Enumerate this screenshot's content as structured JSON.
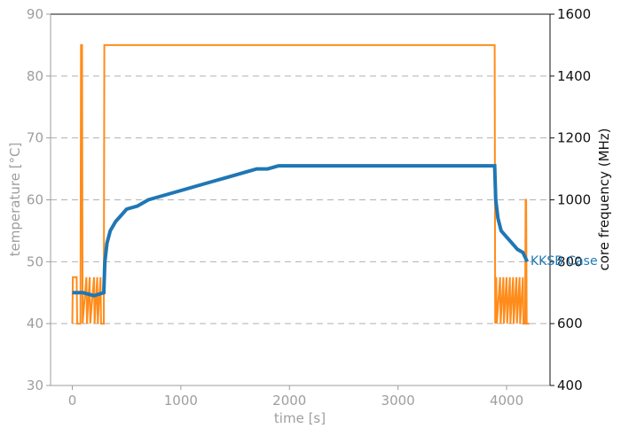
{
  "chart_data": {
    "type": "line",
    "xlabel": "time [s]",
    "ylabel_left": "temperature [°C]",
    "ylabel_right": "core frequency (MHz)",
    "xlim": [
      -200,
      4400
    ],
    "ylim_left": [
      30,
      90
    ],
    "ylim_right": [
      400,
      1600
    ],
    "x_ticks": [
      0,
      1000,
      2000,
      3000,
      4000
    ],
    "y_ticks_left": [
      30,
      40,
      50,
      60,
      70,
      80,
      90
    ],
    "y_ticks_right": [
      400,
      600,
      800,
      1000,
      1200,
      1400,
      1600
    ],
    "grid": "horizontal dashed",
    "colors": {
      "temperature": "#1f77b4",
      "frequency": "#ff8c1a",
      "grid": "#b0b0b0",
      "left_axis": "#9e9e9e",
      "right_axis": "#111111"
    },
    "series": [
      {
        "name": "KKSB Case",
        "axis": "left",
        "x": [
          0,
          100,
          200,
          290,
          300,
          320,
          350,
          400,
          450,
          500,
          600,
          700,
          800,
          900,
          1000,
          1100,
          1200,
          1300,
          1400,
          1500,
          1600,
          1700,
          1800,
          1900,
          2000,
          2200,
          2400,
          2600,
          2800,
          3000,
          3200,
          3400,
          3600,
          3800,
          3890,
          3900,
          3920,
          3950,
          4000,
          4050,
          4100,
          4150,
          4190
        ],
        "y": [
          45,
          45,
          44.5,
          45,
          50,
          53,
          55,
          56.5,
          57.5,
          58.5,
          59,
          60,
          60.5,
          61,
          61.5,
          62,
          62.5,
          63,
          63.5,
          64,
          64.5,
          65,
          65,
          65.5,
          65.5,
          65.5,
          65.5,
          65.5,
          65.5,
          65.5,
          65.5,
          65.5,
          65.5,
          65.5,
          65.5,
          60,
          57,
          55,
          54,
          53,
          52,
          51.5,
          50
        ]
      },
      {
        "name": "core frequency",
        "axis": "right",
        "x": [
          0,
          5,
          40,
          45,
          75,
          80,
          90,
          95,
          130,
          135,
          160,
          165,
          200,
          205,
          230,
          235,
          260,
          265,
          290,
          295,
          300,
          3890,
          3895,
          3905,
          3910,
          3940,
          3945,
          3970,
          3975,
          4000,
          4005,
          4030,
          4035,
          4060,
          4065,
          4090,
          4095,
          4120,
          4125,
          4150,
          4155,
          4170,
          4175,
          4180,
          4185,
          4210
        ],
        "y": [
          600,
          750,
          750,
          600,
          600,
          1500,
          1500,
          600,
          750,
          600,
          750,
          600,
          750,
          600,
          750,
          600,
          750,
          600,
          600,
          1500,
          1500,
          1500,
          600,
          750,
          600,
          750,
          600,
          750,
          600,
          750,
          600,
          750,
          600,
          750,
          600,
          750,
          600,
          750,
          600,
          750,
          600,
          600,
          1000,
          1000,
          600,
          600
        ]
      }
    ]
  }
}
